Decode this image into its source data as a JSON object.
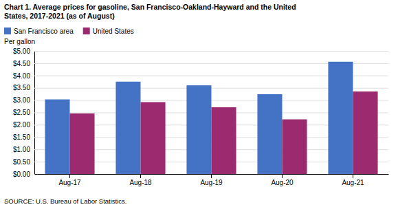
{
  "chart_data": {
    "type": "bar",
    "title": [
      "Chart 1. Average prices for gasoline, San Francisco-Oakland-Hayward and the United",
      "States, 2017-2021  (as of August)"
    ],
    "ylabel": "Per gallon",
    "source": "SOURCE: U.S. Bureau of Labor Statistics.",
    "categories": [
      "Aug-17",
      "Aug-18",
      "Aug-19",
      "Aug-20",
      "Aug-21"
    ],
    "series": [
      {
        "name": "San Francisco area",
        "color": "#4472C4",
        "values": [
          3.03,
          3.75,
          3.6,
          3.24,
          4.56
        ]
      },
      {
        "name": "United States",
        "color": "#9C2A6E",
        "values": [
          2.46,
          2.92,
          2.71,
          2.22,
          3.35
        ]
      }
    ],
    "ylim": [
      0,
      5.0
    ],
    "yticks": [
      {
        "value": 0.0,
        "label": "$0.00"
      },
      {
        "value": 0.5,
        "label": "$0.50"
      },
      {
        "value": 1.0,
        "label": "$1.00"
      },
      {
        "value": 1.5,
        "label": "$1.50"
      },
      {
        "value": 2.0,
        "label": "$2.00"
      },
      {
        "value": 2.5,
        "label": "$2.50"
      },
      {
        "value": 3.0,
        "label": "$3.00"
      },
      {
        "value": 3.5,
        "label": "$3.50"
      },
      {
        "value": 4.0,
        "label": "$4.00"
      },
      {
        "value": 4.5,
        "label": "$4.50"
      },
      {
        "value": 5.0,
        "label": "$5.00"
      }
    ],
    "grid": true,
    "legend": "top-left"
  }
}
